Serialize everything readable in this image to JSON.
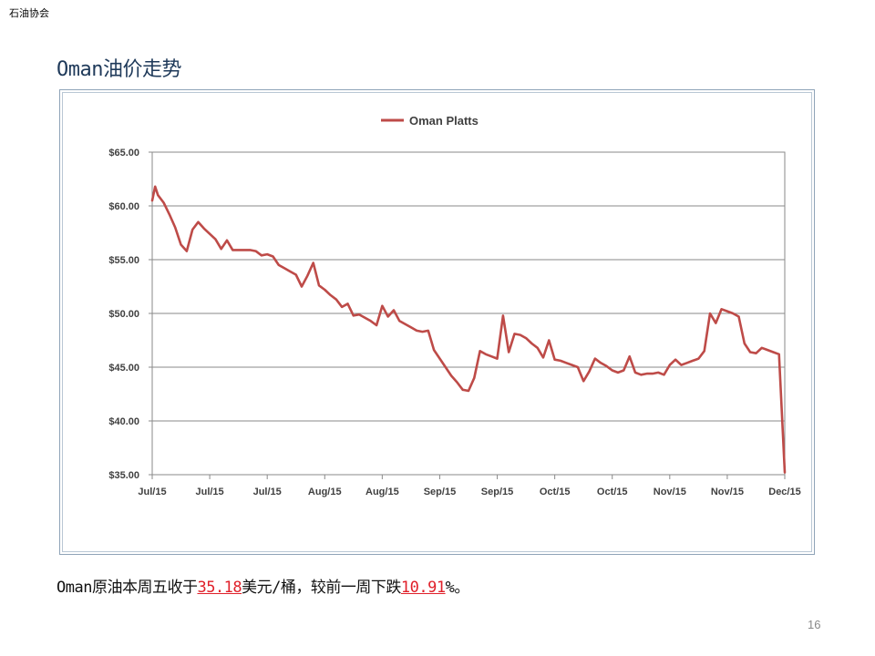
{
  "header": {
    "org": "石油协会"
  },
  "title": "Oman油价走势",
  "chart_data": {
    "type": "line",
    "title": "",
    "xlabel": "",
    "ylabel": "",
    "legend_position": "top-center",
    "grid": true,
    "ylim": [
      35,
      65
    ],
    "yticks": [
      "$65.00",
      "$60.00",
      "$55.00",
      "$50.00",
      "$45.00",
      "$40.00",
      "$35.00"
    ],
    "ytick_values": [
      65,
      60,
      55,
      50,
      45,
      40,
      35
    ],
    "xticks": [
      "Jul/15",
      "Jul/15",
      "Jul/15",
      "Aug/15",
      "Aug/15",
      "Sep/15",
      "Sep/15",
      "Oct/15",
      "Oct/15",
      "Nov/15",
      "Nov/15",
      "Dec/15"
    ],
    "xlim": [
      0,
      110
    ],
    "series_color": "#be4b48",
    "series": [
      {
        "name": "Oman Platts",
        "x": [
          0,
          0.5,
          1,
          2,
          3,
          4,
          5,
          6,
          7,
          8,
          9,
          10,
          11,
          12,
          13,
          14,
          15,
          16,
          17,
          18,
          19,
          20,
          21,
          22,
          23,
          24,
          25,
          26,
          27,
          28,
          29,
          30,
          31,
          32,
          33,
          34,
          35,
          36,
          37,
          38,
          39,
          40,
          41,
          42,
          43,
          44,
          45,
          46,
          47,
          48,
          49,
          50,
          51,
          52,
          53,
          54,
          55,
          56,
          57,
          58,
          59,
          60,
          61,
          62,
          63,
          64,
          65,
          66,
          67,
          68,
          69,
          70,
          71,
          72,
          73,
          74,
          75,
          76,
          77,
          78,
          79,
          80,
          81,
          82,
          83,
          84,
          85,
          86,
          87,
          88,
          89,
          90,
          91,
          92,
          93,
          94,
          95,
          96,
          97,
          98,
          99,
          100,
          101,
          102,
          103,
          104,
          105,
          106,
          107,
          108,
          109,
          110
        ],
        "values": [
          60.5,
          61.8,
          61.0,
          60.3,
          59.2,
          58.0,
          56.4,
          55.8,
          57.8,
          58.5,
          57.9,
          57.4,
          56.9,
          56.0,
          56.8,
          55.9,
          55.9,
          55.9,
          55.9,
          55.8,
          55.4,
          55.5,
          55.3,
          54.5,
          54.2,
          53.9,
          53.6,
          52.5,
          53.5,
          54.7,
          52.6,
          52.2,
          51.7,
          51.3,
          50.6,
          50.9,
          49.8,
          49.9,
          49.6,
          49.3,
          48.9,
          50.7,
          49.7,
          50.3,
          49.3,
          49.0,
          48.7,
          48.4,
          48.3,
          48.4,
          46.6,
          45.8,
          45.0,
          44.2,
          43.6,
          42.9,
          42.8,
          44.0,
          46.5,
          46.2,
          46.0,
          45.8,
          49.8,
          46.4,
          48.1,
          48.0,
          47.7,
          47.2,
          46.8,
          45.9,
          47.5,
          45.7,
          45.6,
          45.4,
          45.2,
          45.0,
          43.7,
          44.6,
          45.8,
          45.4,
          45.1,
          44.7,
          44.5,
          44.7,
          46.0,
          44.5,
          44.3,
          44.4,
          44.4,
          44.5,
          44.3,
          45.2,
          45.7,
          45.2,
          45.4,
          45.6,
          45.8,
          46.5,
          50.0,
          49.1,
          50.4,
          50.2,
          50.0,
          49.7,
          47.2,
          46.4,
          46.3,
          46.8,
          46.6,
          46.4,
          46.2,
          35.2
        ]
      }
    ]
  },
  "caption": {
    "prefix": "Oman原油本周五收于",
    "price": "35.18",
    "middle": "美元/桶，较前一周下跌",
    "change": "10.91",
    "suffix": "%。"
  },
  "page_number": "16"
}
